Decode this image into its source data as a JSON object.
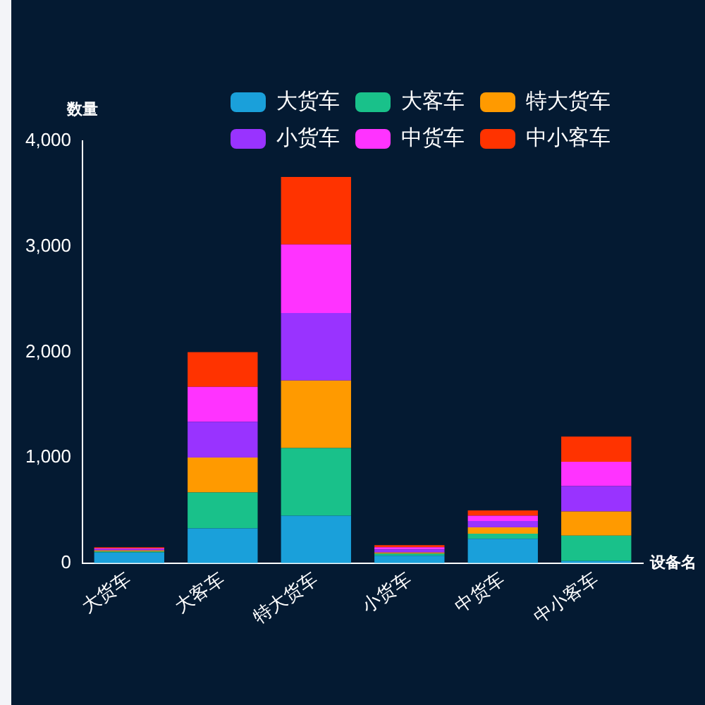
{
  "chart_data": {
    "type": "bar",
    "xlabel": "设备名",
    "ylabel": "数量",
    "categories": [
      "大货车",
      "大客车",
      "特大货车",
      "小货车",
      "中货车",
      "中小客车"
    ],
    "series": [
      {
        "name": "大货车",
        "color": "#1aa0da",
        "values": [
          100,
          330,
          450,
          70,
          230,
          20
        ]
      },
      {
        "name": "大客车",
        "color": "#19c18a",
        "values": [
          10,
          340,
          640,
          20,
          50,
          240
        ]
      },
      {
        "name": "特大货车",
        "color": "#ff9a00",
        "values": [
          10,
          330,
          640,
          10,
          60,
          230
        ]
      },
      {
        "name": "小货车",
        "color": "#9933ff",
        "values": [
          10,
          340,
          640,
          30,
          60,
          240
        ]
      },
      {
        "name": "中货车",
        "color": "#ff33ff",
        "values": [
          10,
          330,
          650,
          20,
          50,
          230
        ]
      },
      {
        "name": "中小客车",
        "color": "#ff3300",
        "values": [
          10,
          330,
          640,
          20,
          50,
          240
        ]
      }
    ],
    "stacked": true,
    "ylim": [
      0,
      4000
    ],
    "yticks": [
      0,
      {
        "value": 1000,
        "label": "1,000"
      },
      {
        "value": 2000,
        "label": "2,000"
      },
      {
        "value": 3000,
        "label": "3,000"
      },
      {
        "value": 4000,
        "label": "4,000"
      }
    ],
    "grid": false,
    "legend": "top right"
  }
}
